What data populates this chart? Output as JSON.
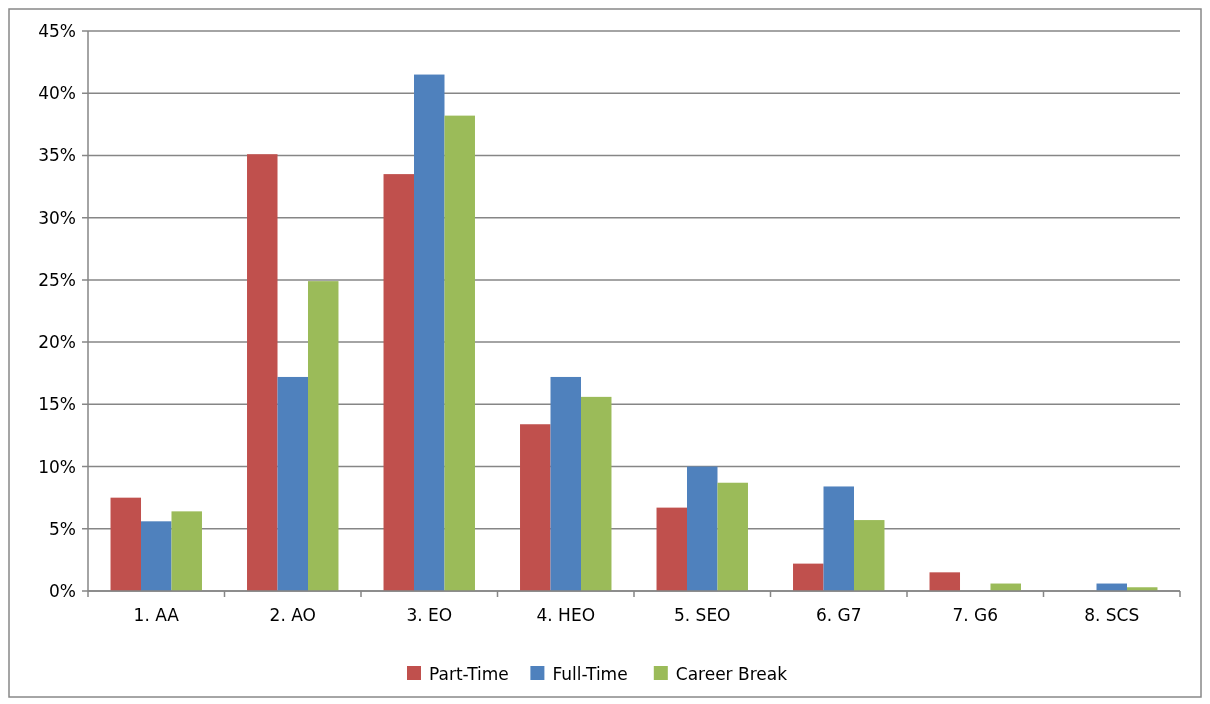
{
  "chart_data": {
    "type": "bar",
    "categories": [
      "1. AA",
      "2. AO",
      "3. EO",
      "4. HEO",
      "5. SEO",
      "6. G7",
      "7. G6",
      "8. SCS"
    ],
    "series": [
      {
        "name": "Part-Time",
        "color": "#c0504d",
        "values": [
          7.5,
          35.1,
          33.5,
          13.4,
          6.7,
          2.2,
          1.5,
          0
        ]
      },
      {
        "name": "Full-Time",
        "color": "#4f81bd",
        "values": [
          5.6,
          17.2,
          41.5,
          17.2,
          10.0,
          8.4,
          0,
          0.6
        ]
      },
      {
        "name": "Career Break",
        "color": "#9bbb59",
        "values": [
          6.4,
          24.9,
          38.2,
          15.6,
          8.7,
          5.7,
          0.6,
          0.3
        ]
      }
    ],
    "ylim": [
      0,
      45
    ],
    "yticks": [
      {
        "value": 0,
        "label": "0%"
      },
      {
        "value": 5,
        "label": "5%"
      },
      {
        "value": 10,
        "label": "10%"
      },
      {
        "value": 15,
        "label": "15%"
      },
      {
        "value": 20,
        "label": "20%"
      },
      {
        "value": 25,
        "label": "25%"
      },
      {
        "value": 30,
        "label": "30%"
      },
      {
        "value": 35,
        "label": "35%"
      },
      {
        "value": 40,
        "label": "40%"
      },
      {
        "value": 45,
        "label": "45%"
      }
    ],
    "grid": "y",
    "legend": "bottom"
  }
}
